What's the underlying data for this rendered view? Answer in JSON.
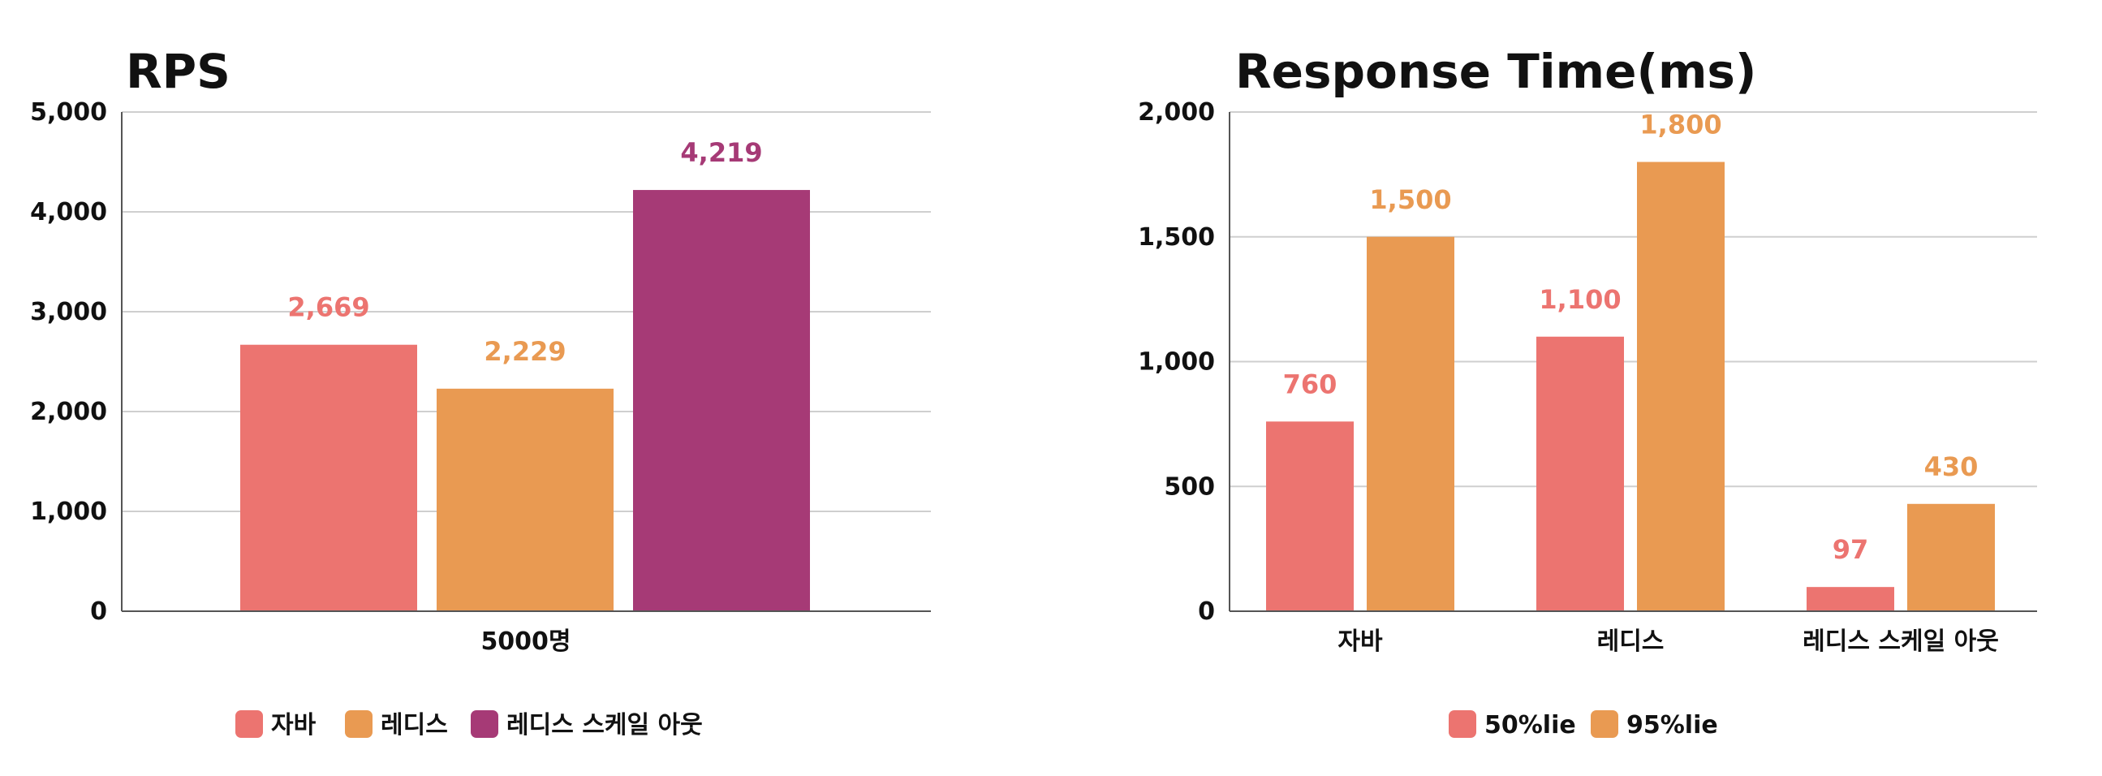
{
  "chart_data": [
    {
      "type": "bar",
      "title": "RPS",
      "categories": [
        "5000명"
      ],
      "series": [
        {
          "name": "자바",
          "color": "#EC7470",
          "values": [
            2669
          ]
        },
        {
          "name": "레디스",
          "color": "#E99A52",
          "values": [
            2229
          ]
        },
        {
          "name": "레디스 스케일 아웃",
          "color": "#A63A76",
          "values": [
            4219
          ]
        }
      ],
      "ylim": [
        0,
        5000
      ],
      "yticks": [
        0,
        1000,
        2000,
        3000,
        4000,
        5000
      ],
      "ytick_labels": [
        "0",
        "1,000",
        "2,000",
        "3,000",
        "4,000",
        "5,000"
      ],
      "data_labels": [
        "2,669",
        "2,229",
        "4,219"
      ],
      "grid": true,
      "legend": "bottom"
    },
    {
      "type": "bar",
      "title": "Response Time(ms)",
      "categories": [
        "자바",
        "레디스",
        "레디스 스케일 아웃"
      ],
      "series": [
        {
          "name": "50%lie",
          "color": "#EC7470",
          "values": [
            760,
            1100,
            97
          ]
        },
        {
          "name": "95%lie",
          "color": "#E99A52",
          "values": [
            1500,
            1800,
            430
          ]
        }
      ],
      "ylim": [
        0,
        2000
      ],
      "yticks": [
        0,
        500,
        1000,
        1500,
        2000
      ],
      "ytick_labels": [
        "0",
        "500",
        "1,000",
        "1,500",
        "2,000"
      ],
      "data_labels": [
        [
          "760",
          "1,100",
          "97"
        ],
        [
          "1,500",
          "1,800",
          "430"
        ]
      ],
      "grid": true,
      "legend": "bottom"
    }
  ]
}
